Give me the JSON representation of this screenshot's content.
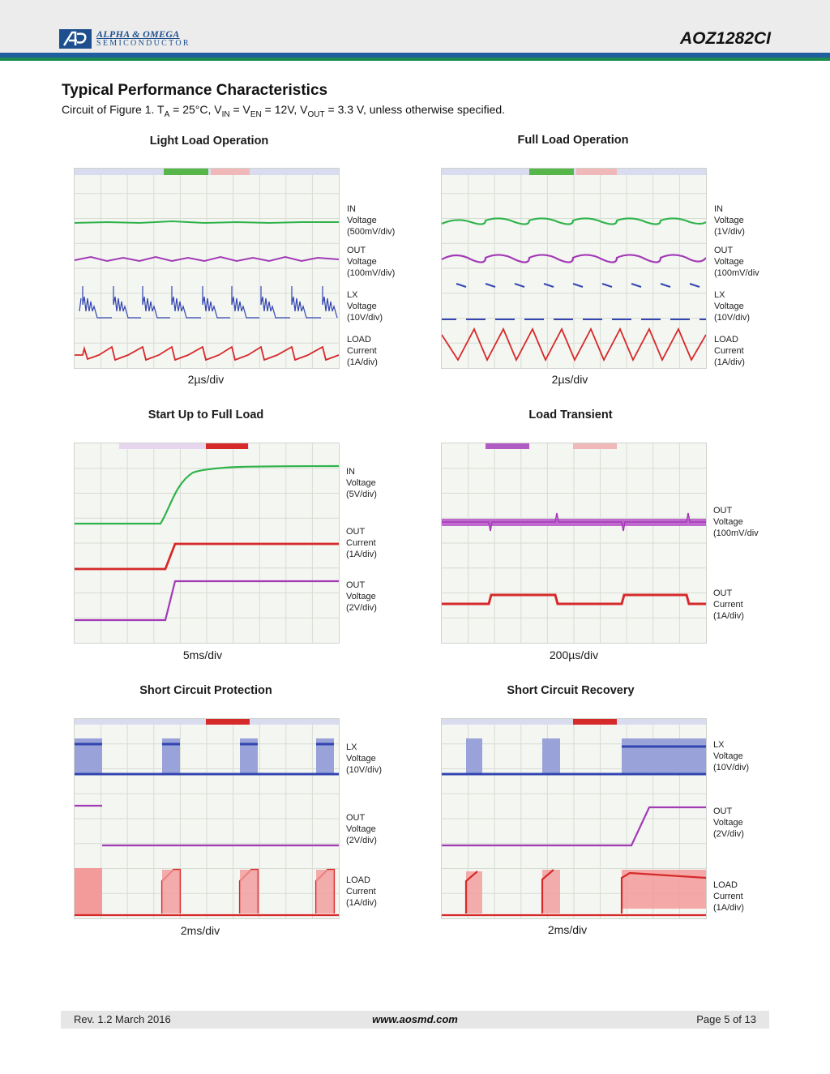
{
  "header": {
    "company_line1": "ALPHA & OMEGA",
    "company_line2": "SEMICONDUCTOR",
    "part_number": "AOZ1282CI",
    "logo_icon": "ao-logo-icon",
    "colors": {
      "blue": "#1f5fa0",
      "green": "#1c8a4c"
    }
  },
  "section": {
    "title": "Typical Performance Characteristics",
    "cond_prefix": "Circuit of Figure 1. T",
    "cond_ta_sub": "A",
    "cond_ta_val": " = 25°C, V",
    "cond_vin_sub": "IN",
    "cond_eq1": " = V",
    "cond_ven_sub": "EN",
    "cond_vin_val": " = 12V, V",
    "cond_vout_sub": "OUT",
    "cond_suffix": " = 3.3 V, unless otherwise specified."
  },
  "plots": [
    {
      "title": "Light Load Operation",
      "timebase": "2µs/div",
      "channels": [
        {
          "line1": "IN",
          "line2": "Voltage",
          "line3": "(500mV/div)"
        },
        {
          "line1": "OUT",
          "line2": "Voltage",
          "line3": "(100mV/div)"
        },
        {
          "line1": "LX",
          "line2": "Voltage",
          "line3": "(10V/div)"
        },
        {
          "line1": "LOAD",
          "line2": "Current",
          "line3": "(1A/div)"
        }
      ]
    },
    {
      "title": "Full Load Operation",
      "timebase": "2µs/div",
      "channels": [
        {
          "line1": "IN",
          "line2": "Voltage",
          "line3": "(1V/div)"
        },
        {
          "line1": "OUT",
          "line2": "Voltage",
          "line3": "(100mV/div"
        },
        {
          "line1": "LX",
          "line2": "Voltage",
          "line3": "(10V/div)"
        },
        {
          "line1": "LOAD",
          "line2": "Current",
          "line3": "(1A/div)"
        }
      ]
    },
    {
      "title": "Start Up to Full Load",
      "timebase": "5ms/div",
      "channels": [
        {
          "line1": "IN",
          "line2": "Voltage",
          "line3": "(5V/div)"
        },
        {
          "line1": "OUT",
          "line2": "Current",
          "line3": "(1A/div)"
        },
        {
          "line1": "OUT",
          "line2": "Voltage",
          "line3": "(2V/div)"
        }
      ]
    },
    {
      "title": "Load Transient",
      "timebase": "200µs/div",
      "channels": [
        {
          "line1": "OUT",
          "line2": "Voltage",
          "line3": "(100mV/div"
        },
        {
          "line1": "OUT",
          "line2": "Current",
          "line3": "(1A/div)"
        }
      ]
    },
    {
      "title": "Short Circuit Protection",
      "timebase": "2ms/div",
      "channels": [
        {
          "line1": "LX",
          "line2": "Voltage",
          "line3": "(10V/div)"
        },
        {
          "line1": "OUT",
          "line2": "Voltage",
          "line3": "(2V/div)"
        },
        {
          "line1": "LOAD",
          "line2": "Current",
          "line3": "(1A/div)"
        }
      ]
    },
    {
      "title": "Short Circuit Recovery",
      "timebase": "2ms/div",
      "channels": [
        {
          "line1": "LX",
          "line2": "Voltage",
          "line3": "(10V/div)"
        },
        {
          "line1": "OUT",
          "line2": "Voltage",
          "line3": "(2V/div)"
        },
        {
          "line1": "LOAD",
          "line2": "Current",
          "line3": "(1A/div)"
        }
      ]
    }
  ],
  "trace_colors": {
    "green": "#2fb34a",
    "purple": "#a23ab5",
    "blue": "#3345b0",
    "red": "#d62a2a"
  },
  "footer": {
    "revision": "Rev. 1.2 March 2016",
    "website": "www.aosmd.com",
    "page": "Page 5 of 13"
  }
}
